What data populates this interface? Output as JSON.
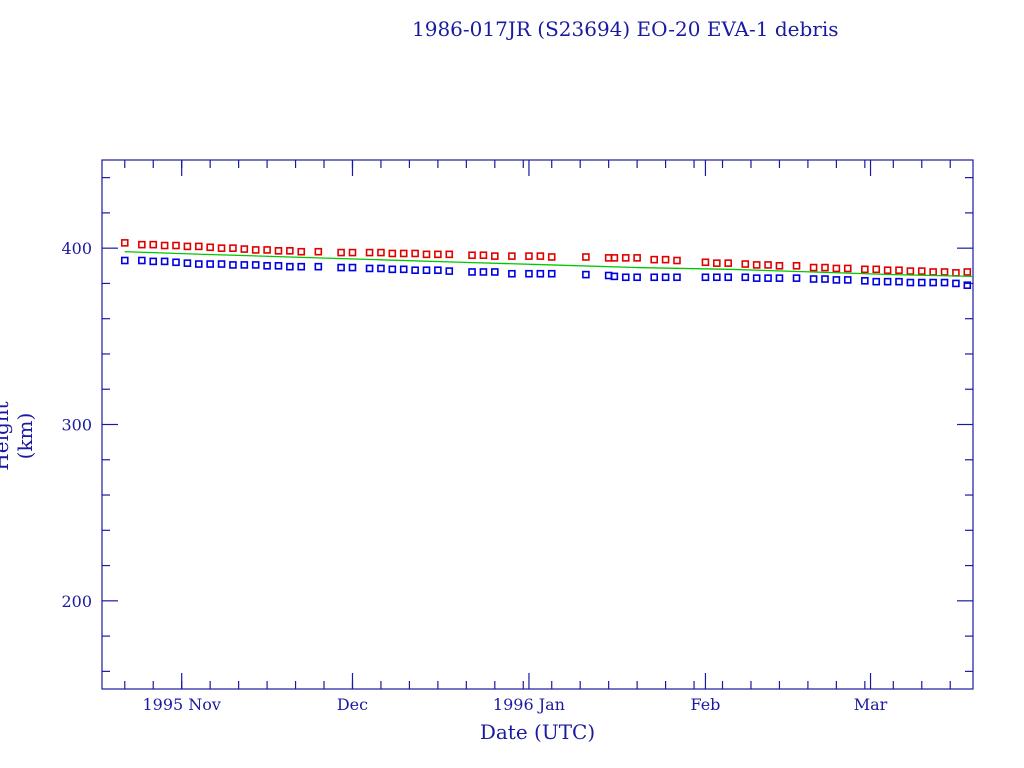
{
  "chart_data": {
    "type": "scatter",
    "title": "1986-017JR (S23694) EO-20 EVA-1 debris",
    "xlabel": "Date (UTC)",
    "ylabel": "Height (km)",
    "xlim": [
      "1995-10-18",
      "1996-03-19"
    ],
    "ylim": [
      150,
      450
    ],
    "x_tick_labels": [
      {
        "date": "1995-11-01",
        "label": "1995 Nov"
      },
      {
        "date": "1995-12-01",
        "label": "Dec"
      },
      {
        "date": "1996-01-01",
        "label": "1996 Jan"
      },
      {
        "date": "1996-02-01",
        "label": "Feb"
      },
      {
        "date": "1996-03-01",
        "label": "Mar"
      }
    ],
    "y_tick_labels": [
      200,
      300,
      400
    ],
    "grid": false,
    "colors": {
      "axis": "#1a1aa0",
      "apogee": "#e00000",
      "perigee": "#0000e0",
      "mean": "#00c800"
    },
    "series": [
      {
        "marker": "square",
        "color": "#e00000",
        "points": [
          [
            "1995-10-22",
            403
          ],
          [
            "1995-10-25",
            402
          ],
          [
            "1995-10-27",
            402
          ],
          [
            "1995-10-29",
            401.5
          ],
          [
            "1995-10-31",
            401.5
          ],
          [
            "1995-11-02",
            401
          ],
          [
            "1995-11-04",
            401
          ],
          [
            "1995-11-06",
            400.5
          ],
          [
            "1995-11-08",
            400
          ],
          [
            "1995-11-10",
            400
          ],
          [
            "1995-11-12",
            399.5
          ],
          [
            "1995-11-14",
            399
          ],
          [
            "1995-11-16",
            399
          ],
          [
            "1995-11-18",
            398.5
          ],
          [
            "1995-11-20",
            398.5
          ],
          [
            "1995-11-22",
            398
          ],
          [
            "1995-11-25",
            398
          ],
          [
            "1995-11-29",
            397.5
          ],
          [
            "1995-12-01",
            397.5
          ],
          [
            "1995-12-04",
            397.5
          ],
          [
            "1995-12-06",
            397.5
          ],
          [
            "1995-12-08",
            397
          ],
          [
            "1995-12-10",
            397
          ],
          [
            "1995-12-12",
            397
          ],
          [
            "1995-12-14",
            396.5
          ],
          [
            "1995-12-16",
            396.5
          ],
          [
            "1995-12-18",
            396.5
          ],
          [
            "1995-12-22",
            396
          ],
          [
            "1995-12-24",
            396
          ],
          [
            "1995-12-26",
            395.5
          ],
          [
            "1995-12-29",
            395.5
          ],
          [
            "1996-01-01",
            395.5
          ],
          [
            "1996-01-03",
            395.5
          ],
          [
            "1996-01-05",
            395
          ],
          [
            "1996-01-11",
            395
          ],
          [
            "1996-01-15",
            394.5
          ],
          [
            "1996-01-16",
            394.5
          ],
          [
            "1996-01-18",
            394.5
          ],
          [
            "1996-01-20",
            394.5
          ],
          [
            "1996-01-23",
            393.5
          ],
          [
            "1996-01-25",
            393.5
          ],
          [
            "1996-01-27",
            393
          ],
          [
            "1996-02-01",
            392
          ],
          [
            "1996-02-03",
            391.5
          ],
          [
            "1996-02-05",
            391.5
          ],
          [
            "1996-02-08",
            391
          ],
          [
            "1996-02-10",
            390.5
          ],
          [
            "1996-02-12",
            390.5
          ],
          [
            "1996-02-14",
            390
          ],
          [
            "1996-02-17",
            390
          ],
          [
            "1996-02-20",
            389
          ],
          [
            "1996-02-22",
            389
          ],
          [
            "1996-02-24",
            388.5
          ],
          [
            "1996-02-26",
            388.5
          ],
          [
            "1996-02-29",
            388
          ],
          [
            "1996-03-02",
            388
          ],
          [
            "1996-03-04",
            387.5
          ],
          [
            "1996-03-06",
            387.5
          ],
          [
            "1996-03-08",
            387
          ],
          [
            "1996-03-10",
            387
          ],
          [
            "1996-03-12",
            386.5
          ],
          [
            "1996-03-14",
            386.5
          ],
          [
            "1996-03-16",
            386
          ],
          [
            "1996-03-18",
            386.5
          ]
        ]
      },
      {
        "marker": "square",
        "color": "#0000e0",
        "points": [
          [
            "1995-10-22",
            393
          ],
          [
            "1995-10-25",
            393
          ],
          [
            "1995-10-27",
            392.5
          ],
          [
            "1995-10-29",
            392.5
          ],
          [
            "1995-10-31",
            392
          ],
          [
            "1995-11-02",
            391.5
          ],
          [
            "1995-11-04",
            391
          ],
          [
            "1995-11-06",
            391
          ],
          [
            "1995-11-08",
            391
          ],
          [
            "1995-11-10",
            390.5
          ],
          [
            "1995-11-12",
            390.5
          ],
          [
            "1995-11-14",
            390.5
          ],
          [
            "1995-11-16",
            390
          ],
          [
            "1995-11-18",
            390
          ],
          [
            "1995-11-20",
            389.5
          ],
          [
            "1995-11-22",
            389.5
          ],
          [
            "1995-11-25",
            389.5
          ],
          [
            "1995-11-29",
            389
          ],
          [
            "1995-12-01",
            389
          ],
          [
            "1995-12-04",
            388.5
          ],
          [
            "1995-12-06",
            388.5
          ],
          [
            "1995-12-08",
            388
          ],
          [
            "1995-12-10",
            388
          ],
          [
            "1995-12-12",
            387.5
          ],
          [
            "1995-12-14",
            387.5
          ],
          [
            "1995-12-16",
            387.5
          ],
          [
            "1995-12-18",
            387
          ],
          [
            "1995-12-22",
            386.5
          ],
          [
            "1995-12-24",
            386.5
          ],
          [
            "1995-12-26",
            386.5
          ],
          [
            "1995-12-29",
            385.5
          ],
          [
            "1996-01-01",
            385.5
          ],
          [
            "1996-01-03",
            385.5
          ],
          [
            "1996-01-05",
            385.5
          ],
          [
            "1996-01-11",
            385
          ],
          [
            "1996-01-15",
            384.5
          ],
          [
            "1996-01-16",
            384
          ],
          [
            "1996-01-18",
            383.5
          ],
          [
            "1996-01-20",
            383.5
          ],
          [
            "1996-01-23",
            383.5
          ],
          [
            "1996-01-25",
            383.5
          ],
          [
            "1996-01-27",
            383.5
          ],
          [
            "1996-02-01",
            383.5
          ],
          [
            "1996-02-03",
            383.5
          ],
          [
            "1996-02-05",
            383.5
          ],
          [
            "1996-02-08",
            383.5
          ],
          [
            "1996-02-10",
            383
          ],
          [
            "1996-02-12",
            383
          ],
          [
            "1996-02-14",
            383
          ],
          [
            "1996-02-17",
            383
          ],
          [
            "1996-02-20",
            382.5
          ],
          [
            "1996-02-22",
            382.5
          ],
          [
            "1996-02-24",
            382
          ],
          [
            "1996-02-26",
            382
          ],
          [
            "1996-02-29",
            381.5
          ],
          [
            "1996-03-02",
            381
          ],
          [
            "1996-03-04",
            381
          ],
          [
            "1996-03-06",
            381
          ],
          [
            "1996-03-08",
            380.5
          ],
          [
            "1996-03-10",
            380.5
          ],
          [
            "1996-03-12",
            380.5
          ],
          [
            "1996-03-14",
            380.5
          ],
          [
            "1996-03-16",
            380
          ],
          [
            "1996-03-18",
            379
          ]
        ]
      },
      {
        "marker": "line",
        "color": "#00c800",
        "points": [
          [
            "1995-10-22",
            398
          ],
          [
            "1995-11-05",
            396.5
          ],
          [
            "1995-11-20",
            395
          ],
          [
            "1995-12-05",
            393.5
          ],
          [
            "1995-12-20",
            392
          ],
          [
            "1996-01-05",
            390.5
          ],
          [
            "1996-01-20",
            389
          ],
          [
            "1996-02-05",
            388
          ],
          [
            "1996-02-20",
            386.5
          ],
          [
            "1996-03-05",
            385
          ],
          [
            "1996-03-19",
            384
          ]
        ]
      }
    ]
  }
}
